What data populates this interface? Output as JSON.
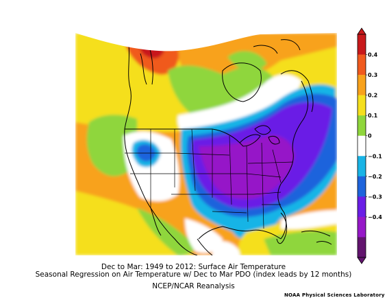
{
  "figure": {
    "title_line1": "Dec to Mar: 1949 to 2012: Surface Air Temperature",
    "title_line2": "Seasonal Regression on Air Temperature  w/ Dec to Mar PDO (index leads by 12 months)",
    "source": "NCEP/NCAR Reanalysis",
    "credit": "NOAA Physical Sciences Laboratory"
  },
  "colorbar": {
    "labels": [
      "0.4",
      "0.3",
      "0.2",
      "0.1",
      "0",
      "−0.1",
      "−0.2",
      "−0.3",
      "−0.4"
    ],
    "colors": [
      "#c8191b",
      "#f05a1e",
      "#f8a21c",
      "#f5df1e",
      "#8fd63c",
      "#ffffff",
      "#19b4e6",
      "#1e64dc",
      "#6a1ee6",
      "#9618c8",
      "#62146e"
    ]
  },
  "map_colors": {
    "dark_red": "#c8191b",
    "red_orange": "#f05a1e",
    "orange": "#f8a21c",
    "yellow": "#f5df1e",
    "green": "#8fd63c",
    "white": "#ffffff",
    "cyan": "#19b4e6",
    "blue": "#1e64dc",
    "indigo": "#6a1ee6",
    "purple": "#9618c8"
  }
}
